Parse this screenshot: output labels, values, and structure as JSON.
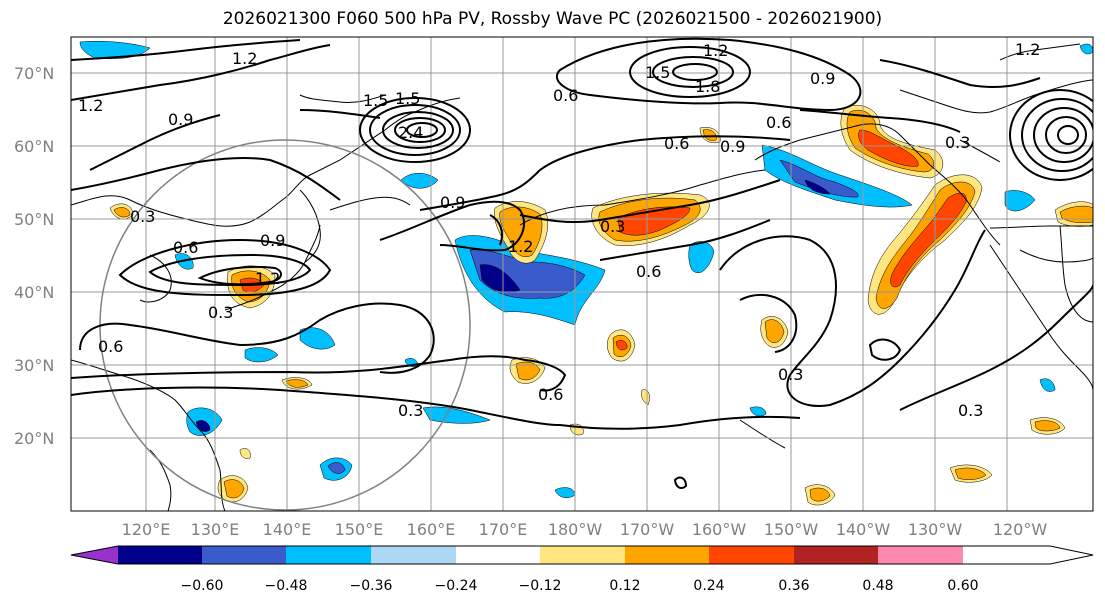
{
  "title": "2026021300 F060 500 hPa PV, Rossby Wave PC (2026021500 - 2026021900)",
  "lat_labels": [
    "70°N",
    "60°N",
    "50°N",
    "40°N",
    "30°N",
    "20°N"
  ],
  "lon_labels": [
    "120°E",
    "130°E",
    "140°E",
    "150°E",
    "160°E",
    "170°E",
    "180°W",
    "170°W",
    "160°W",
    "150°W",
    "140°W",
    "130°W",
    "120°W"
  ],
  "contour_labels": [
    "1.2",
    "1.2",
    "1.5",
    "1.8",
    "0.9",
    "0.6",
    "1.5",
    "0.9",
    "0.6",
    "0.6",
    "0.6",
    "0.9",
    "0.3",
    "1.2",
    "0.3",
    "0.6",
    "0.9",
    "0.3",
    "0.6",
    "0.6",
    "0.3",
    "0.3",
    "0.3",
    "0.3",
    "1.2",
    "0.9",
    "1.5",
    "1.2",
    "2.4",
    "1.2"
  ],
  "colorbar": {
    "ticks": [
      "−0.60",
      "−0.48",
      "−0.36",
      "−0.24",
      "−0.12",
      "0.12",
      "0.24",
      "0.36",
      "0.48",
      "0.60"
    ],
    "colors": [
      "#9932cc",
      "#00008b",
      "#3a5bcc",
      "#00bfff",
      "#add8f5",
      "#ffffff",
      "#ffe680",
      "#ffa500",
      "#ff4500",
      "#b22222",
      "#ff88b0"
    ]
  },
  "palette": {
    "neg_light": "#add8f5",
    "neg_mid": "#00bfff",
    "neg_dark": "#3a5bcc",
    "neg_darkest": "#00008b",
    "pos_light": "#ffe680",
    "pos_mid": "#ffa500",
    "pos_dark": "#ff4500"
  }
}
